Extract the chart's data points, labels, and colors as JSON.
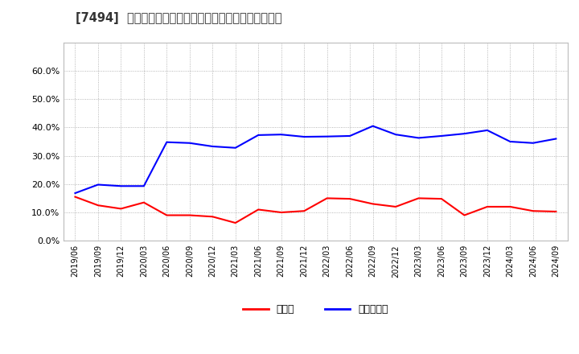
{
  "title": "[7494]  現預金、有利子負債の総資産に対する比率の推移",
  "x_labels": [
    "2019/06",
    "2019/09",
    "2019/12",
    "2020/03",
    "2020/06",
    "2020/09",
    "2020/12",
    "2021/03",
    "2021/06",
    "2021/09",
    "2021/12",
    "2022/03",
    "2022/06",
    "2022/09",
    "2022/12",
    "2023/03",
    "2023/06",
    "2023/09",
    "2023/12",
    "2024/03",
    "2024/06",
    "2024/09"
  ],
  "cash": [
    0.155,
    0.125,
    0.113,
    0.135,
    0.09,
    0.09,
    0.085,
    0.063,
    0.11,
    0.1,
    0.105,
    0.15,
    0.148,
    0.13,
    0.12,
    0.15,
    0.148,
    0.09,
    0.12,
    0.12,
    0.105,
    0.103
  ],
  "debt": [
    0.168,
    0.198,
    0.193,
    0.193,
    0.348,
    0.345,
    0.333,
    0.328,
    0.373,
    0.375,
    0.367,
    0.368,
    0.37,
    0.405,
    0.375,
    0.363,
    0.37,
    0.378,
    0.39,
    0.35,
    0.345,
    0.36
  ],
  "cash_color": "#ff0000",
  "debt_color": "#0000ff",
  "background_color": "#ffffff",
  "grid_color": "#999999",
  "ylim": [
    0.0,
    0.7
  ],
  "yticks": [
    0.0,
    0.1,
    0.2,
    0.3,
    0.4,
    0.5,
    0.6
  ],
  "legend_cash": "現預金",
  "legend_debt": "有利子負債"
}
